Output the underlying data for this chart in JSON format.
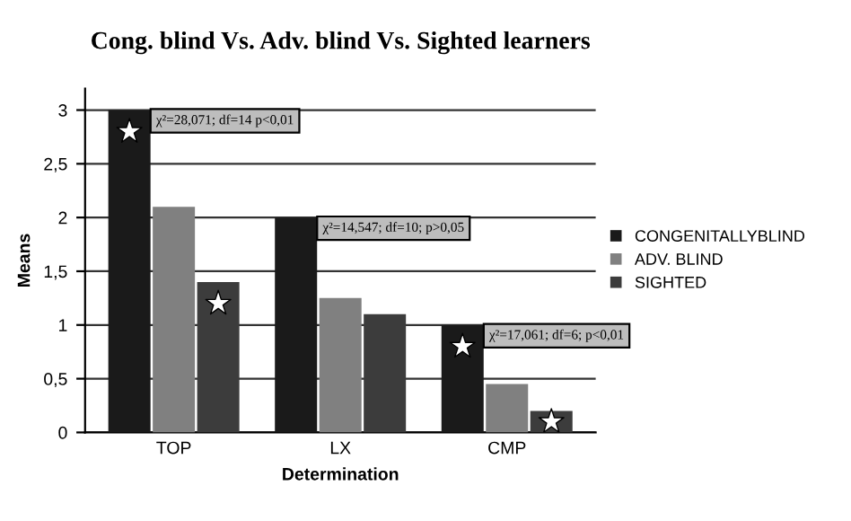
{
  "chart_data": {
    "type": "bar",
    "title": "Cong. blind Vs. Adv. blind Vs. Sighted learners",
    "xlabel": "Determination",
    "ylabel": "Means",
    "categories": [
      "TOP",
      "LX",
      "CMP"
    ],
    "series": [
      {
        "name": "CONGENITALLYBLIND",
        "color": "#1a1a1a",
        "values": [
          3.0,
          2.0,
          1.0
        ]
      },
      {
        "name": "ADV. BLIND",
        "color": "#808080",
        "values": [
          2.1,
          1.25,
          0.45
        ]
      },
      {
        "name": "SIGHTED",
        "color": "#3c3c3c",
        "values": [
          1.4,
          1.1,
          0.2
        ]
      }
    ],
    "ylim": [
      0,
      3.2
    ],
    "yticks": [
      0,
      {
        "value": 0.5,
        "label": "0,5"
      },
      1,
      {
        "value": 1.5,
        "label": "1,5"
      },
      2,
      {
        "value": 2.5,
        "label": "2,5"
      },
      3
    ],
    "grid": "y",
    "legend": "right",
    "annotations": [
      "χ²=28,071; df=14 p<0,01",
      "χ²=14,547; df=10; p>0,05",
      "χ²=17,061; df=6; p<0,01"
    ]
  }
}
